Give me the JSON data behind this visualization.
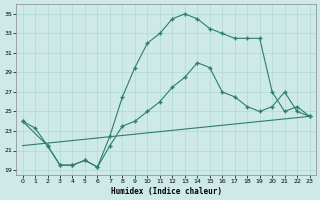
{
  "xlabel": "Humidex (Indice chaleur)",
  "xlim": [
    -0.5,
    23.5
  ],
  "ylim": [
    18.5,
    36.0
  ],
  "xticks": [
    0,
    1,
    2,
    3,
    4,
    5,
    6,
    7,
    8,
    9,
    10,
    11,
    12,
    13,
    14,
    15,
    16,
    17,
    18,
    19,
    20,
    21,
    22,
    23
  ],
  "yticks": [
    19,
    21,
    23,
    25,
    27,
    29,
    31,
    33,
    35
  ],
  "bg_color": "#cdeae8",
  "line_color": "#2d7d6e",
  "grid_color": "#b0d8d4",
  "line1_x": [
    0,
    1,
    2,
    3,
    4,
    5,
    6,
    7,
    8,
    9,
    10,
    11,
    12,
    13,
    14,
    15,
    16,
    17,
    18,
    19,
    20,
    21,
    22,
    23
  ],
  "line1_y": [
    24.0,
    23.3,
    21.5,
    19.5,
    19.5,
    20.0,
    19.3,
    21.5,
    23.5,
    24.0,
    25.0,
    26.0,
    27.5,
    28.5,
    30.0,
    29.5,
    27.0,
    26.5,
    25.5,
    25.0,
    25.5,
    27.0,
    25.0,
    24.5
  ],
  "line2_x": [
    0,
    2,
    3,
    4,
    5,
    6,
    7,
    8,
    9,
    10,
    11,
    12,
    13,
    14,
    15,
    16,
    17,
    18,
    19,
    20,
    21,
    22,
    23
  ],
  "line2_y": [
    24.0,
    21.5,
    19.5,
    19.5,
    20.0,
    19.3,
    22.5,
    26.5,
    29.5,
    32.0,
    33.0,
    34.5,
    35.0,
    34.5,
    33.5,
    33.0,
    32.5,
    32.5,
    32.5,
    27.0,
    25.0,
    25.5,
    24.5
  ],
  "line3_x": [
    0,
    23
  ],
  "line3_y": [
    21.5,
    24.5
  ]
}
